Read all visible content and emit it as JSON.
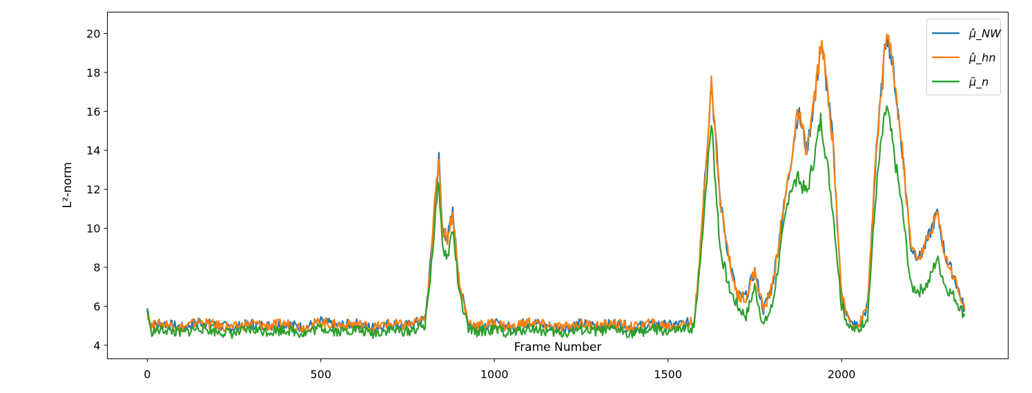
{
  "chart_data": {
    "type": "line",
    "title": "",
    "xlabel": "Frame Number",
    "ylabel": "L²-norm",
    "xlim": [
      -115,
      2480
    ],
    "ylim": [
      3.3,
      21.1
    ],
    "xticks": [
      0,
      500,
      1000,
      1500,
      2000
    ],
    "yticks": [
      4,
      6,
      8,
      10,
      12,
      14,
      16,
      18,
      20
    ],
    "grid": false,
    "legend_position": "top-right",
    "x": [
      0,
      10,
      50,
      100,
      150,
      200,
      250,
      300,
      350,
      400,
      450,
      500,
      550,
      600,
      650,
      700,
      750,
      800,
      815,
      825,
      840,
      850,
      865,
      880,
      900,
      925,
      950,
      1000,
      1050,
      1100,
      1150,
      1200,
      1250,
      1300,
      1350,
      1400,
      1450,
      1500,
      1550,
      1575,
      1590,
      1600,
      1625,
      1650,
      1675,
      1700,
      1725,
      1750,
      1775,
      1800,
      1825,
      1850,
      1875,
      1900,
      1925,
      1940,
      1950,
      1975,
      2000,
      2025,
      2050,
      2075,
      2100,
      2115,
      2130,
      2150,
      2175,
      2200,
      2225,
      2250,
      2275,
      2300,
      2325,
      2355
    ],
    "series": [
      {
        "name": "μ̂_NW",
        "color": "#1f77b4",
        "values": [
          5.9,
          5.0,
          5.1,
          4.9,
          5.2,
          5.0,
          4.9,
          5.1,
          5.0,
          5.1,
          4.9,
          5.2,
          5.0,
          5.1,
          4.9,
          5.1,
          5.0,
          5.3,
          8,
          10.5,
          13.6,
          10,
          9.5,
          10.8,
          7,
          5.2,
          5.0,
          5.1,
          4.9,
          5.2,
          5.0,
          4.9,
          5.1,
          5.0,
          5.1,
          4.9,
          5.1,
          5.0,
          5.1,
          5.2,
          8,
          11,
          17.5,
          11.5,
          8.5,
          6.5,
          6.5,
          7.8,
          5.8,
          7,
          10,
          13,
          16,
          14,
          17,
          19.4,
          18.5,
          14.5,
          6.5,
          5.1,
          5.0,
          6,
          14,
          17,
          20.2,
          18,
          14,
          9,
          8.5,
          9.5,
          10.8,
          8.5,
          7.5,
          5.8
        ]
      },
      {
        "name": "μ̂_hn",
        "color": "#ff7f0e",
        "values": [
          5.9,
          5.0,
          5.1,
          4.9,
          5.2,
          5.0,
          4.9,
          5.1,
          5.0,
          5.1,
          4.9,
          5.2,
          5.0,
          5.1,
          4.9,
          5.1,
          5.0,
          5.3,
          8,
          10.5,
          13.6,
          10,
          9.5,
          10.8,
          7,
          5.2,
          5.0,
          5.1,
          4.9,
          5.2,
          5.0,
          4.9,
          5.1,
          5.0,
          5.1,
          4.9,
          5.1,
          5.0,
          5.1,
          5.2,
          8,
          11,
          17.5,
          11.5,
          8.5,
          6.5,
          6.5,
          7.8,
          5.8,
          7,
          10,
          13,
          16,
          14,
          17,
          19.4,
          18.5,
          14.5,
          6.5,
          5.1,
          5.0,
          6,
          14,
          17,
          20.2,
          18,
          14,
          9,
          8.5,
          9.5,
          10.8,
          8.5,
          7.5,
          5.8
        ]
      },
      {
        "name": "μ̃_n",
        "color": "#2ca02c",
        "values": [
          5.8,
          4.7,
          4.8,
          4.6,
          4.9,
          4.7,
          4.6,
          4.8,
          4.7,
          4.8,
          4.6,
          4.9,
          4.7,
          4.8,
          4.6,
          4.8,
          4.7,
          5.0,
          7.5,
          9.5,
          12.6,
          9,
          8.5,
          10,
          6.5,
          4.8,
          4.7,
          4.8,
          4.6,
          4.9,
          4.7,
          4.6,
          4.8,
          4.7,
          4.8,
          4.6,
          4.8,
          4.7,
          4.8,
          4.9,
          7.5,
          10,
          15.5,
          9,
          7,
          6,
          5.5,
          7,
          5,
          6,
          9,
          12,
          12.5,
          11.8,
          14,
          15.6,
          14.5,
          11,
          6,
          4.8,
          4.8,
          5.5,
          12,
          14.5,
          16.3,
          14,
          11,
          7,
          6.8,
          7.2,
          8.5,
          7,
          6.5,
          5.5
        ]
      }
    ]
  }
}
